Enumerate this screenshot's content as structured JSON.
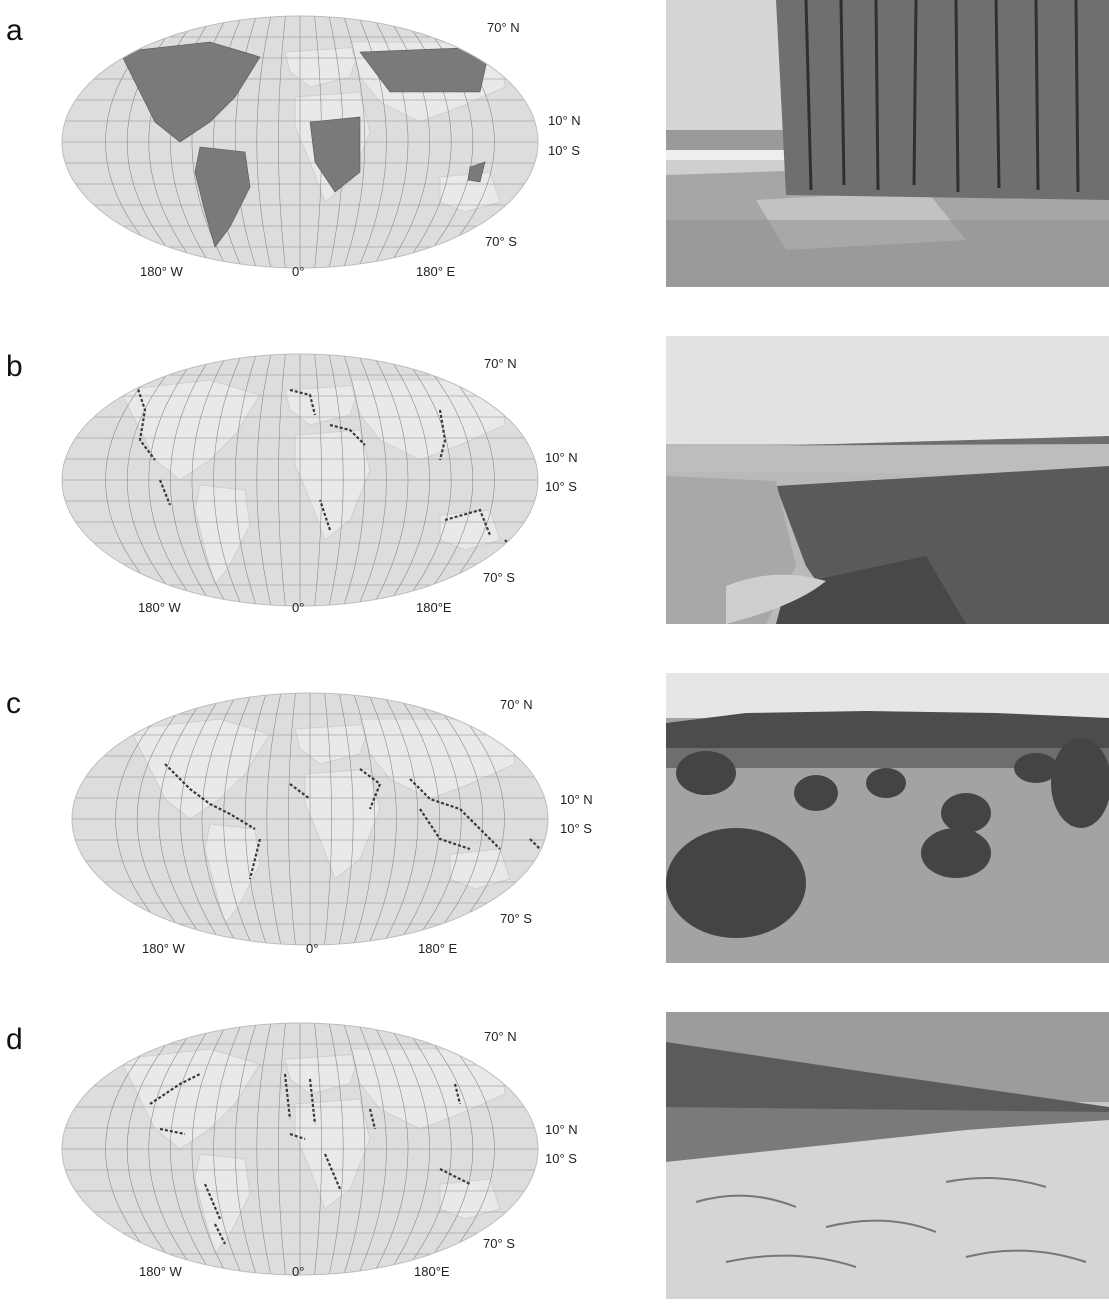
{
  "panels": [
    {
      "letter": "a",
      "map": {
        "lat_north": "70° N",
        "lat_n10": "10° N",
        "lat_s10": "10° S",
        "lat_south": "70° S",
        "lon_west": "180° W",
        "lon_zero": "0°",
        "lon_east": "180° E"
      },
      "highlight": "regional land fill",
      "photo": "riverine floodplain with trees"
    },
    {
      "letter": "b",
      "map": {
        "lat_north": "70° N",
        "lat_n10": "10° N",
        "lat_s10": "10° S",
        "lat_south": "70° S",
        "lon_west": "180° W",
        "lon_zero": "0°",
        "lon_east": "180°E"
      },
      "highlight": "temperate coastlines",
      "photo": "salt marsh"
    },
    {
      "letter": "c",
      "map": {
        "lat_north": "70° N",
        "lat_n10": "10° N",
        "lat_s10": "10° S",
        "lat_south": "70° S",
        "lon_west": "180° W",
        "lon_zero": "0°",
        "lon_east": "180° E"
      },
      "highlight": "tropical coastlines",
      "photo": "mangrove"
    },
    {
      "letter": "d",
      "map": {
        "lat_north": "70° N",
        "lat_n10": "10° N",
        "lat_s10": "10° S",
        "lat_south": "70° S",
        "lon_west": "180° W",
        "lon_zero": "0°",
        "lon_east": "180°E"
      },
      "highlight": "dune coastlines",
      "photo": "coastal dune"
    }
  ],
  "colors": {
    "ocean": "#dddddd",
    "grid": "#8a8a8a",
    "land": "#e9e9e9",
    "highlight": "#3a3a3a"
  }
}
